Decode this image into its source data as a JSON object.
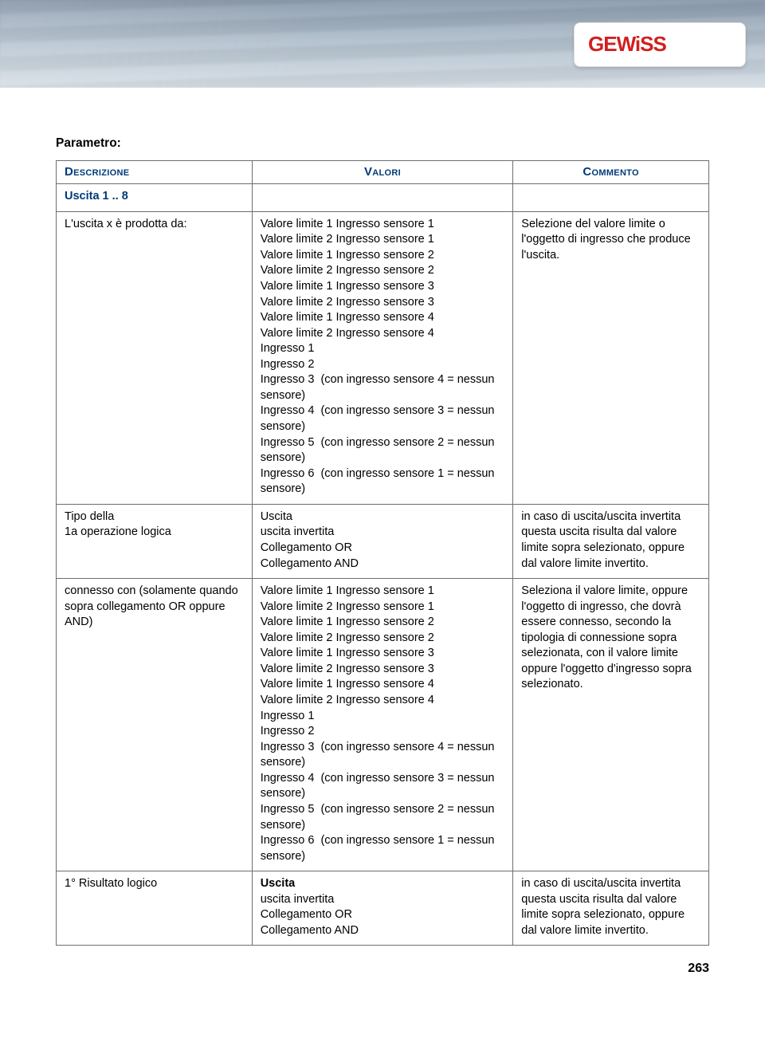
{
  "brand": {
    "name": "GEWiSS",
    "logo_color": "#d21f1f",
    "plate_bg": "#ffffff"
  },
  "colors": {
    "header_text": "#003a7a",
    "border": "#6e6e6e",
    "text": "#000000",
    "banner_from": "#8a9aac",
    "banner_to": "#d5dde4"
  },
  "page_number": "263",
  "title": "Parametro:",
  "columns": {
    "desc": "Descrizione",
    "val": "Valori",
    "com": "Commento"
  },
  "rows": [
    {
      "desc_title": "Uscita 1 .. 8",
      "desc_lines": [],
      "val_lines": [],
      "com_lines": []
    },
    {
      "desc_lines": [
        "L'uscita x è prodotta da:"
      ],
      "val_lines": [
        "Valore limite 1 Ingresso sensore 1",
        "Valore limite 2 Ingresso sensore 1",
        "Valore limite 1 Ingresso sensore 2",
        "Valore limite 2 Ingresso sensore 2",
        "Valore limite 1 Ingresso sensore 3",
        "Valore limite 2 Ingresso sensore 3",
        "Valore limite 1 Ingresso sensore 4",
        "Valore limite 2 Ingresso sensore 4",
        "Ingresso 1",
        "Ingresso 2",
        "Ingresso 3  (con ingresso sensore 4 = nessun sensore)",
        "Ingresso 4  (con ingresso sensore 3 = nessun sensore)",
        "Ingresso 5  (con ingresso sensore 2 = nessun sensore)",
        "Ingresso 6  (con ingresso sensore 1 = nessun sensore)"
      ],
      "com_lines": [
        "Selezione del valore limite o l'oggetto di ingresso che produce l'uscita."
      ]
    },
    {
      "desc_lines": [
        "Tipo della",
        "1a operazione logica"
      ],
      "val_lines": [
        "Uscita",
        "uscita invertita",
        "Collegamento OR",
        "Collegamento AND"
      ],
      "com_lines": [
        "in caso di uscita/uscita invertita questa uscita risulta dal valore limite sopra selezionato, oppure dal valore limite invertito."
      ]
    },
    {
      "desc_lines": [
        "connesso con (solamente quando sopra collegamento OR oppure AND)"
      ],
      "val_lines": [
        "Valore limite 1 Ingresso sensore 1",
        "Valore limite 2 Ingresso sensore 1",
        "Valore limite 1 Ingresso sensore 2",
        "Valore limite 2 Ingresso sensore 2",
        "Valore limite 1 Ingresso sensore 3",
        "Valore limite 2 Ingresso sensore 3",
        "Valore limite 1 Ingresso sensore 4",
        "Valore limite 2 Ingresso sensore 4",
        "Ingresso 1",
        "Ingresso 2",
        "Ingresso 3  (con ingresso sensore 4 = nessun sensore)",
        "Ingresso 4  (con ingresso sensore 3 = nessun sensore)",
        "Ingresso 5  (con ingresso sensore 2 = nessun sensore)",
        "Ingresso 6  (con ingresso sensore 1 = nessun sensore)"
      ],
      "com_lines": [
        "Seleziona il valore limite, oppure l'oggetto di ingresso, che dovrà essere connesso, secondo la tipologia di connessione sopra selezionata, con il valore limite oppure l'oggetto d'ingresso sopra selezionato."
      ]
    },
    {
      "desc_lines": [
        "1° Risultato logico"
      ],
      "val_bold_first": true,
      "val_lines": [
        "Uscita",
        "uscita invertita",
        "Collegamento OR",
        "Collegamento AND"
      ],
      "com_lines": [
        "in caso di uscita/uscita invertita questa uscita risulta dal valore limite sopra selezionato, oppure dal valore limite invertito."
      ]
    }
  ]
}
